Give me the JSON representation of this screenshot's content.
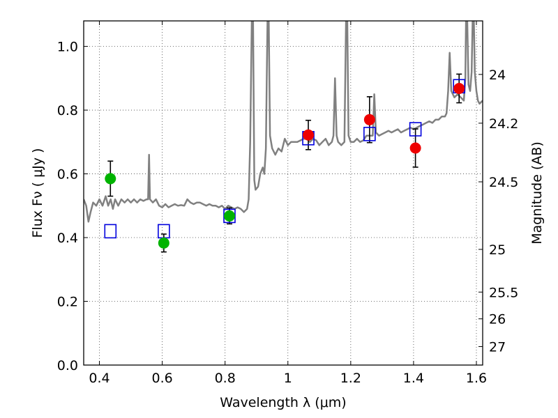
{
  "chart_data": {
    "type": "scatter",
    "xlabel": "Wavelength  λ (μm)",
    "ylabel": "Flux  Fν  ( μJy )",
    "y2label": "Magnitude (AB)",
    "xlim": [
      0.35,
      1.62
    ],
    "ylim": [
      0.0,
      1.08
    ],
    "x_ticks": [
      0.4,
      0.6,
      0.8,
      1.0,
      1.2,
      1.4,
      1.6
    ],
    "x_tick_labels": [
      "0.4",
      "0.6",
      "0.8",
      "1",
      "1.2",
      "1.4",
      "1.6"
    ],
    "y_ticks": [
      0.0,
      0.2,
      0.4,
      0.6,
      0.8,
      1.0
    ],
    "y_tick_labels": [
      "0.0",
      "0.2",
      "0.4",
      "0.6",
      "0.8",
      "1.0"
    ],
    "y2_ticks": [
      {
        "label": "24",
        "flux": 0.912
      },
      {
        "label": "24.2",
        "flux": 0.759
      },
      {
        "label": "24.5",
        "flux": 0.575
      },
      {
        "label": "25",
        "flux": 0.363
      },
      {
        "label": "25.5",
        "flux": 0.229
      },
      {
        "label": "26",
        "flux": 0.145
      },
      {
        "label": "27",
        "flux": 0.058
      }
    ],
    "grid": true,
    "colors": {
      "spectrum": "#808080",
      "model_box": "#0000dd",
      "green_points": "#00b300",
      "red_points": "#ee0000",
      "errorbar": "#000000"
    },
    "series": [
      {
        "style": "green-circle",
        "points": [
          {
            "x": 0.435,
            "y": 0.585,
            "err": 0.055
          },
          {
            "x": 0.605,
            "y": 0.383,
            "err": 0.028
          },
          {
            "x": 0.814,
            "y": 0.468,
            "err": 0.025
          }
        ]
      },
      {
        "style": "red-circle",
        "points": [
          {
            "x": 1.065,
            "y": 0.722,
            "err": 0.046
          },
          {
            "x": 1.26,
            "y": 0.77,
            "err": 0.072
          },
          {
            "x": 1.406,
            "y": 0.681,
            "err": 0.06
          },
          {
            "x": 1.545,
            "y": 0.868,
            "err": 0.045
          }
        ]
      },
      {
        "style": "blue-square",
        "points": [
          {
            "x": 0.435,
            "y": 0.42
          },
          {
            "x": 0.605,
            "y": 0.42
          },
          {
            "x": 0.814,
            "y": 0.468
          },
          {
            "x": 1.065,
            "y": 0.712
          },
          {
            "x": 1.26,
            "y": 0.725
          },
          {
            "x": 1.406,
            "y": 0.74
          },
          {
            "x": 1.545,
            "y": 0.875
          }
        ]
      },
      {
        "style": "spectrum-line",
        "points": [
          [
            0.35,
            0.52
          ],
          [
            0.358,
            0.5
          ],
          [
            0.365,
            0.45
          ],
          [
            0.372,
            0.48
          ],
          [
            0.38,
            0.51
          ],
          [
            0.39,
            0.5
          ],
          [
            0.4,
            0.52
          ],
          [
            0.41,
            0.5
          ],
          [
            0.42,
            0.53
          ],
          [
            0.428,
            0.5
          ],
          [
            0.436,
            0.52
          ],
          [
            0.443,
            0.49
          ],
          [
            0.45,
            0.52
          ],
          [
            0.46,
            0.5
          ],
          [
            0.47,
            0.52
          ],
          [
            0.48,
            0.51
          ],
          [
            0.49,
            0.52
          ],
          [
            0.5,
            0.51
          ],
          [
            0.51,
            0.52
          ],
          [
            0.52,
            0.51
          ],
          [
            0.53,
            0.52
          ],
          [
            0.54,
            0.515
          ],
          [
            0.55,
            0.52
          ],
          [
            0.555,
            0.52
          ],
          [
            0.558,
            0.66
          ],
          [
            0.561,
            0.52
          ],
          [
            0.57,
            0.51
          ],
          [
            0.58,
            0.52
          ],
          [
            0.59,
            0.5
          ],
          [
            0.6,
            0.495
          ],
          [
            0.61,
            0.505
          ],
          [
            0.62,
            0.495
          ],
          [
            0.63,
            0.5
          ],
          [
            0.64,
            0.505
          ],
          [
            0.65,
            0.5
          ],
          [
            0.66,
            0.502
          ],
          [
            0.67,
            0.5
          ],
          [
            0.68,
            0.52
          ],
          [
            0.69,
            0.51
          ],
          [
            0.7,
            0.505
          ],
          [
            0.71,
            0.51
          ],
          [
            0.72,
            0.51
          ],
          [
            0.73,
            0.505
          ],
          [
            0.74,
            0.5
          ],
          [
            0.75,
            0.505
          ],
          [
            0.76,
            0.5
          ],
          [
            0.77,
            0.5
          ],
          [
            0.78,
            0.495
          ],
          [
            0.79,
            0.5
          ],
          [
            0.8,
            0.49
          ],
          [
            0.81,
            0.5
          ],
          [
            0.82,
            0.495
          ],
          [
            0.83,
            0.49
          ],
          [
            0.84,
            0.495
          ],
          [
            0.85,
            0.49
          ],
          [
            0.86,
            0.48
          ],
          [
            0.87,
            0.49
          ],
          [
            0.875,
            0.52
          ],
          [
            0.88,
            0.7
          ],
          [
            0.885,
            1.08
          ],
          [
            0.889,
            1.08
          ],
          [
            0.893,
            0.58
          ],
          [
            0.897,
            0.55
          ],
          [
            0.905,
            0.56
          ],
          [
            0.912,
            0.6
          ],
          [
            0.92,
            0.62
          ],
          [
            0.925,
            0.6
          ],
          [
            0.93,
            0.68
          ],
          [
            0.935,
            1.08
          ],
          [
            0.939,
            1.08
          ],
          [
            0.943,
            0.72
          ],
          [
            0.95,
            0.68
          ],
          [
            0.96,
            0.66
          ],
          [
            0.97,
            0.68
          ],
          [
            0.98,
            0.67
          ],
          [
            0.99,
            0.71
          ],
          [
            1.0,
            0.69
          ],
          [
            1.01,
            0.7
          ],
          [
            1.02,
            0.7
          ],
          [
            1.03,
            0.7
          ],
          [
            1.04,
            0.705
          ],
          [
            1.05,
            0.71
          ],
          [
            1.06,
            0.71
          ],
          [
            1.07,
            0.7
          ],
          [
            1.08,
            0.71
          ],
          [
            1.09,
            0.705
          ],
          [
            1.1,
            0.69
          ],
          [
            1.11,
            0.7
          ],
          [
            1.12,
            0.71
          ],
          [
            1.13,
            0.69
          ],
          [
            1.14,
            0.7
          ],
          [
            1.145,
            0.72
          ],
          [
            1.15,
            0.9
          ],
          [
            1.155,
            0.72
          ],
          [
            1.16,
            0.7
          ],
          [
            1.17,
            0.69
          ],
          [
            1.18,
            0.7
          ],
          [
            1.185,
            1.08
          ],
          [
            1.189,
            1.08
          ],
          [
            1.193,
            0.72
          ],
          [
            1.2,
            0.7
          ],
          [
            1.21,
            0.7
          ],
          [
            1.22,
            0.71
          ],
          [
            1.23,
            0.7
          ],
          [
            1.24,
            0.705
          ],
          [
            1.25,
            0.72
          ],
          [
            1.26,
            0.72
          ],
          [
            1.27,
            0.72
          ],
          [
            1.275,
            0.85
          ],
          [
            1.28,
            0.73
          ],
          [
            1.29,
            0.72
          ],
          [
            1.3,
            0.725
          ],
          [
            1.31,
            0.73
          ],
          [
            1.32,
            0.735
          ],
          [
            1.33,
            0.73
          ],
          [
            1.34,
            0.735
          ],
          [
            1.35,
            0.74
          ],
          [
            1.36,
            0.73
          ],
          [
            1.37,
            0.735
          ],
          [
            1.38,
            0.74
          ],
          [
            1.39,
            0.745
          ],
          [
            1.4,
            0.74
          ],
          [
            1.41,
            0.745
          ],
          [
            1.42,
            0.75
          ],
          [
            1.43,
            0.755
          ],
          [
            1.44,
            0.76
          ],
          [
            1.45,
            0.765
          ],
          [
            1.46,
            0.76
          ],
          [
            1.47,
            0.77
          ],
          [
            1.48,
            0.77
          ],
          [
            1.49,
            0.78
          ],
          [
            1.5,
            0.78
          ],
          [
            1.505,
            0.79
          ],
          [
            1.51,
            0.86
          ],
          [
            1.515,
            0.98
          ],
          [
            1.52,
            0.86
          ],
          [
            1.53,
            0.84
          ],
          [
            1.54,
            0.85
          ],
          [
            1.55,
            0.84
          ],
          [
            1.56,
            0.83
          ],
          [
            1.565,
            0.9
          ],
          [
            1.567,
            1.08
          ],
          [
            1.571,
            1.08
          ],
          [
            1.575,
            0.88
          ],
          [
            1.58,
            0.86
          ],
          [
            1.585,
            0.92
          ],
          [
            1.588,
            1.08
          ],
          [
            1.592,
            1.08
          ],
          [
            1.595,
            0.92
          ],
          [
            1.6,
            0.86
          ],
          [
            1.605,
            0.83
          ],
          [
            1.61,
            0.82
          ],
          [
            1.62,
            0.83
          ]
        ]
      }
    ]
  }
}
